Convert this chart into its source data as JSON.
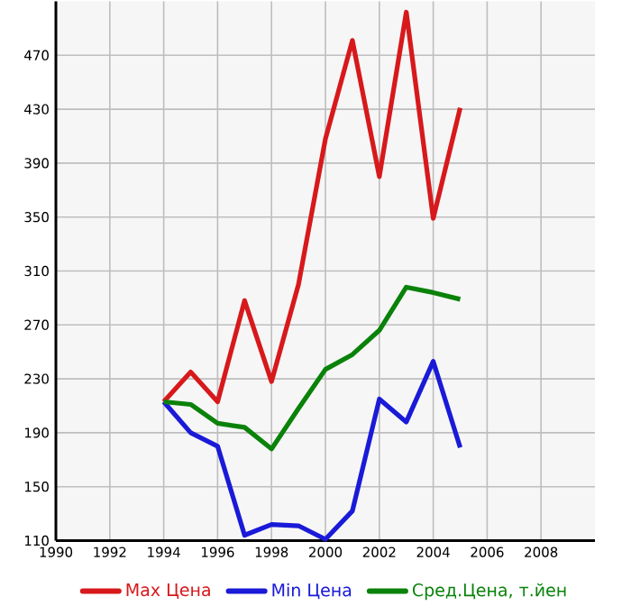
{
  "chart_data": {
    "type": "line",
    "x": [
      1994,
      1995,
      1996,
      1997,
      1998,
      1999,
      2000,
      2001,
      2002,
      2003,
      2004,
      2005
    ],
    "series": [
      {
        "name": "Max Цена",
        "color": "#d7191c",
        "values": [
          213,
          235,
          213,
          288,
          228,
          300,
          408,
          481,
          380,
          502,
          349,
          431
        ]
      },
      {
        "name": "Min Цена",
        "color": "#1a1ad8",
        "values": [
          213,
          190,
          180,
          114,
          122,
          121,
          111,
          132,
          215,
          198,
          243,
          179
        ]
      },
      {
        "name": "Сред.Цена, т.йен",
        "color": "#0a820a",
        "values": [
          213,
          211,
          197,
          194,
          178,
          208,
          237,
          248,
          266,
          298,
          294,
          289
        ]
      }
    ],
    "xlim": [
      1990,
      2010
    ],
    "xticks": [
      1990,
      1992,
      1994,
      1996,
      1998,
      2000,
      2002,
      2004,
      2006,
      2008
    ],
    "ylim": [
      110,
      510
    ],
    "yticks": [
      110,
      150,
      190,
      230,
      270,
      310,
      350,
      390,
      430,
      470
    ],
    "grid": true,
    "legend": "bottom",
    "marker": "none",
    "line_style": "solid"
  }
}
